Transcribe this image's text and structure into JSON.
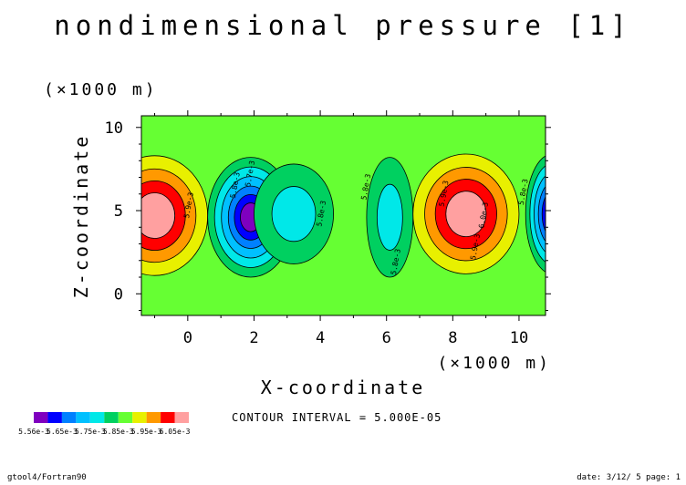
{
  "chart_data": {
    "type": "heatmap",
    "title": "nondimensional pressure [1]",
    "xlabel": "X-coordinate",
    "ylabel": "Z-coordinate",
    "x_unit": "(×1000 m)",
    "y_unit": "(×1000 m)",
    "xlim": [
      -1.4,
      10.8
    ],
    "ylim": [
      -1.3,
      10.7
    ],
    "x_ticks": [
      0,
      2,
      4,
      6,
      8,
      10
    ],
    "y_ticks": [
      0,
      5,
      10
    ],
    "contour_interval_text": "CONTOUR INTERVAL = 5.000E-05",
    "contour_levels": [
      0.00556,
      0.0056,
      0.00565,
      0.0057,
      0.00575,
      0.0058,
      0.00585,
      0.0059,
      0.00595,
      0.006,
      0.00605
    ],
    "colorbar_labels": [
      "5.56e-3",
      "5.65e-3",
      "5.75e-3",
      "5.85e-3",
      "5.95e-3",
      "6.05e-3"
    ],
    "colors": [
      "#7f00bf",
      "#0000ff",
      "#0080ff",
      "#00c0ff",
      "#00e8e8",
      "#00d060",
      "#66ff33",
      "#e8f000",
      "#ff9900",
      "#ff0000",
      "#ffa0a0"
    ],
    "background_color": "#66ff33",
    "features": [
      {
        "kind": "high",
        "x": -1.0,
        "z": 4.7,
        "rx": 1.6,
        "rz": 3.6
      },
      {
        "kind": "low",
        "x": 1.9,
        "z": 4.6,
        "rx": 1.3,
        "rz": 3.6
      },
      {
        "kind": "low-weak",
        "x": 3.2,
        "z": 4.8,
        "rx": 1.2,
        "rz": 3.0
      },
      {
        "kind": "low-weak",
        "x": 6.1,
        "z": 4.6,
        "rx": 0.7,
        "rz": 3.6
      },
      {
        "kind": "high",
        "x": 8.4,
        "z": 4.8,
        "rx": 1.6,
        "rz": 3.6
      },
      {
        "kind": "low",
        "x": 11.0,
        "z": 4.8,
        "rx": 0.8,
        "rz": 3.6
      }
    ],
    "contour_labels": [
      "5.9e-3",
      "5.8e-3",
      "5.7e-3",
      "5.8e-3",
      "5.8e-3",
      "5.8e-3",
      "5.9e-3",
      "6.0e-3",
      "5.9e-3",
      "5.8e-3"
    ]
  },
  "footer": {
    "left": "gtool4/Fortran90",
    "right": "date: 3/12/ 5 page: 1"
  }
}
